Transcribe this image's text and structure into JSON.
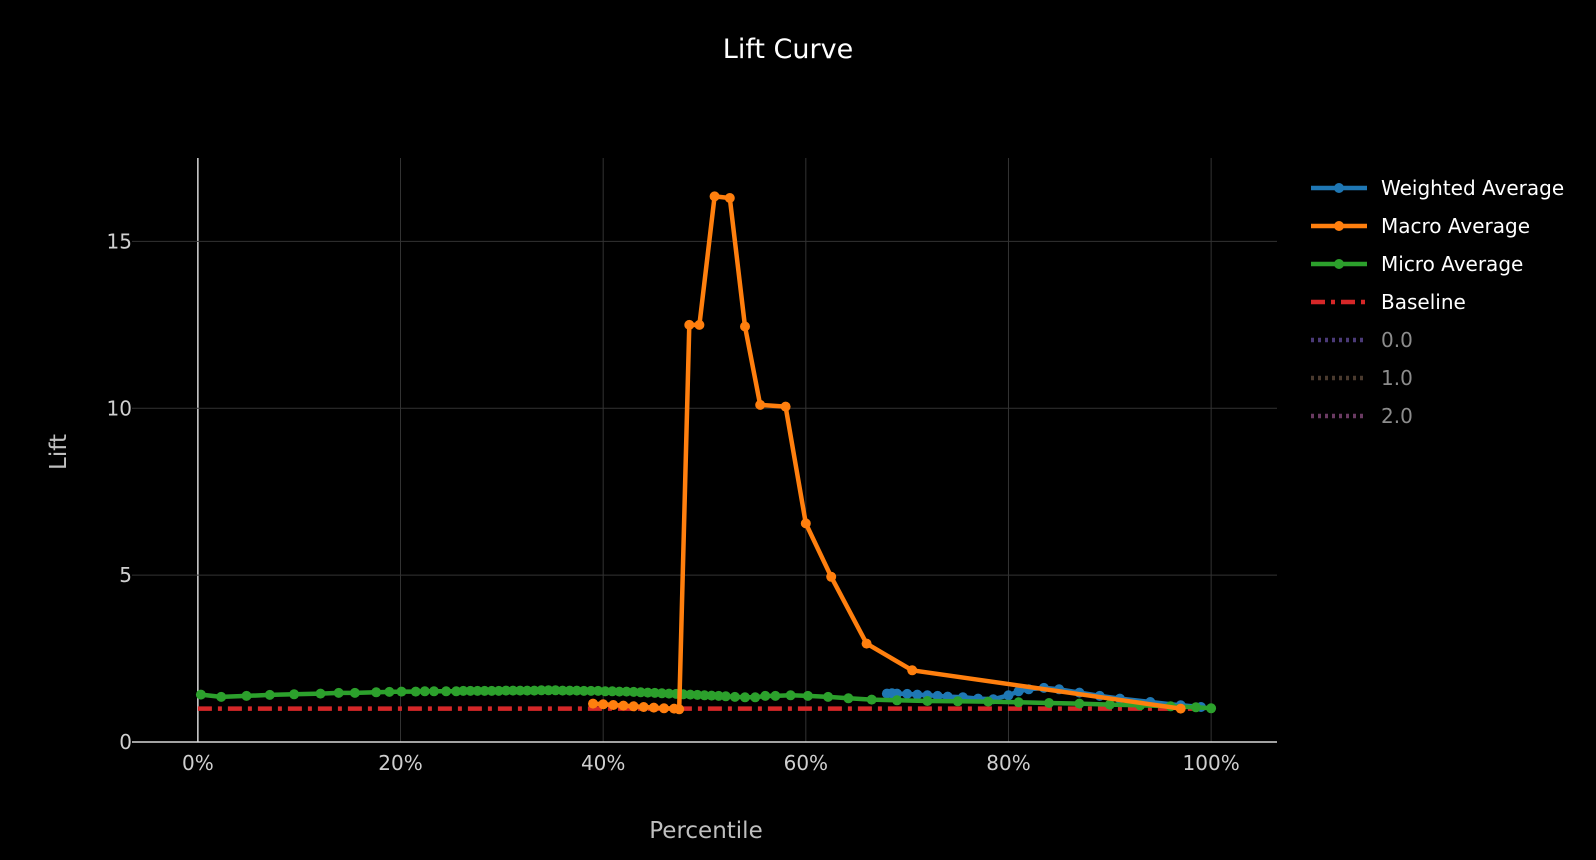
{
  "chart_data": {
    "type": "line",
    "title": "Lift Curve",
    "xlabel": "Percentile",
    "ylabel": "Lift",
    "xlim": [
      -0.065,
      1.065
    ],
    "ylim": [
      0,
      17.5
    ],
    "x_ticks": [
      0,
      0.2,
      0.4,
      0.6,
      0.8,
      1.0
    ],
    "x_tick_labels": [
      "0%",
      "20%",
      "40%",
      "60%",
      "80%",
      "100%"
    ],
    "y_ticks": [
      0,
      5,
      10,
      15
    ],
    "y_tick_labels": [
      "0",
      "5",
      "10",
      "15"
    ],
    "grid": true,
    "legend_position": "right",
    "series": [
      {
        "name": "Weighted Average",
        "color": "#1f77b4",
        "style": "lines+markers",
        "x": [
          0.68,
          0.685,
          0.69,
          0.7,
          0.71,
          0.72,
          0.73,
          0.74,
          0.755,
          0.77,
          0.785,
          0.8,
          0.81,
          0.82,
          0.835,
          0.85,
          0.87,
          0.89,
          0.91,
          0.94,
          0.97,
          0.99
        ],
        "y": [
          1.45,
          1.46,
          1.45,
          1.44,
          1.42,
          1.4,
          1.38,
          1.36,
          1.34,
          1.3,
          1.28,
          1.4,
          1.52,
          1.58,
          1.62,
          1.58,
          1.48,
          1.38,
          1.3,
          1.2,
          1.1,
          1.05
        ]
      },
      {
        "name": "Macro Average",
        "color": "#ff7f0e",
        "style": "lines+markers",
        "x": [
          0.39,
          0.4,
          0.41,
          0.42,
          0.43,
          0.44,
          0.45,
          0.46,
          0.47,
          0.475,
          0.485,
          0.495,
          0.51,
          0.525,
          0.54,
          0.555,
          0.58,
          0.6,
          0.625,
          0.66,
          0.705,
          0.97
        ],
        "y": [
          1.15,
          1.13,
          1.11,
          1.09,
          1.07,
          1.05,
          1.03,
          1.01,
          1.0,
          0.98,
          12.5,
          12.5,
          16.35,
          16.3,
          12.45,
          10.1,
          10.05,
          6.55,
          4.95,
          2.95,
          2.15,
          1.0
        ]
      },
      {
        "name": "Micro Average",
        "color": "#2ca02c",
        "style": "lines+markers",
        "x": [
          0.003,
          0.023,
          0.048,
          0.071,
          0.095,
          0.121,
          0.139,
          0.155,
          0.176,
          0.189,
          0.201,
          0.215,
          0.224,
          0.233,
          0.245,
          0.255,
          0.262,
          0.269,
          0.276,
          0.283,
          0.29,
          0.297,
          0.304,
          0.311,
          0.318,
          0.325,
          0.332,
          0.339,
          0.346,
          0.353,
          0.36,
          0.367,
          0.374,
          0.381,
          0.388,
          0.395,
          0.402,
          0.409,
          0.416,
          0.423,
          0.43,
          0.437,
          0.444,
          0.451,
          0.458,
          0.465,
          0.472,
          0.479,
          0.486,
          0.493,
          0.5,
          0.507,
          0.514,
          0.521,
          0.53,
          0.54,
          0.55,
          0.56,
          0.57,
          0.585,
          0.602,
          0.622,
          0.642,
          0.665,
          0.69,
          0.72,
          0.75,
          0.78,
          0.81,
          0.84,
          0.87,
          0.9,
          0.93,
          0.96,
          0.985,
          1.0
        ],
        "y": [
          1.42,
          1.35,
          1.38,
          1.41,
          1.43,
          1.45,
          1.47,
          1.47,
          1.49,
          1.5,
          1.51,
          1.51,
          1.52,
          1.52,
          1.52,
          1.52,
          1.53,
          1.53,
          1.53,
          1.53,
          1.53,
          1.53,
          1.54,
          1.54,
          1.54,
          1.54,
          1.54,
          1.55,
          1.55,
          1.55,
          1.54,
          1.54,
          1.54,
          1.53,
          1.53,
          1.53,
          1.52,
          1.52,
          1.51,
          1.51,
          1.5,
          1.49,
          1.48,
          1.47,
          1.46,
          1.45,
          1.44,
          1.43,
          1.42,
          1.41,
          1.4,
          1.39,
          1.38,
          1.37,
          1.35,
          1.34,
          1.34,
          1.38,
          1.38,
          1.4,
          1.38,
          1.35,
          1.31,
          1.27,
          1.25,
          1.23,
          1.22,
          1.21,
          1.19,
          1.17,
          1.15,
          1.12,
          1.1,
          1.07,
          1.04,
          1.01
        ]
      },
      {
        "name": "Baseline",
        "color": "#d62728",
        "style": "dashdot",
        "x": [
          0,
          1
        ],
        "y": [
          1,
          1
        ]
      },
      {
        "name": "0.0",
        "color": "#4b3a78",
        "style": "dotted",
        "x": [],
        "y": []
      },
      {
        "name": "1.0",
        "color": "#4a3a2e",
        "style": "dotted",
        "x": [],
        "y": []
      },
      {
        "name": "2.0",
        "color": "#6a3a62",
        "style": "dotted",
        "x": [],
        "y": []
      }
    ]
  }
}
